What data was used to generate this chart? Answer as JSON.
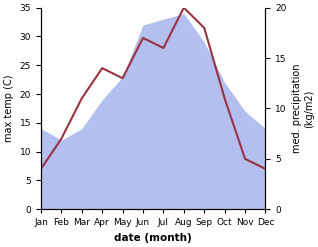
{
  "months": [
    "Jan",
    "Feb",
    "Mar",
    "Apr",
    "May",
    "Jun",
    "Jul",
    "Aug",
    "Sep",
    "Oct",
    "Nov",
    "Dec"
  ],
  "max_temp": [
    14,
    12,
    14,
    19,
    23,
    32,
    33,
    34,
    29,
    22,
    17,
    14
  ],
  "med_precip": [
    4,
    7,
    11,
    14,
    13,
    17,
    16,
    20,
    18,
    11,
    5,
    4
  ],
  "temp_ylim": [
    0,
    35
  ],
  "precip_ylim": [
    0,
    20
  ],
  "temp_yticks": [
    0,
    5,
    10,
    15,
    20,
    25,
    30,
    35
  ],
  "precip_yticks": [
    0,
    5,
    10,
    15,
    20
  ],
  "ylabel_left": "max temp (C)",
  "ylabel_right": "med. precipitation\n(kg/m2)",
  "xlabel": "date (month)",
  "fill_color": "#b3bfee",
  "line_color": "#993344",
  "line_width": 1.5,
  "bg_color": "#ffffff"
}
